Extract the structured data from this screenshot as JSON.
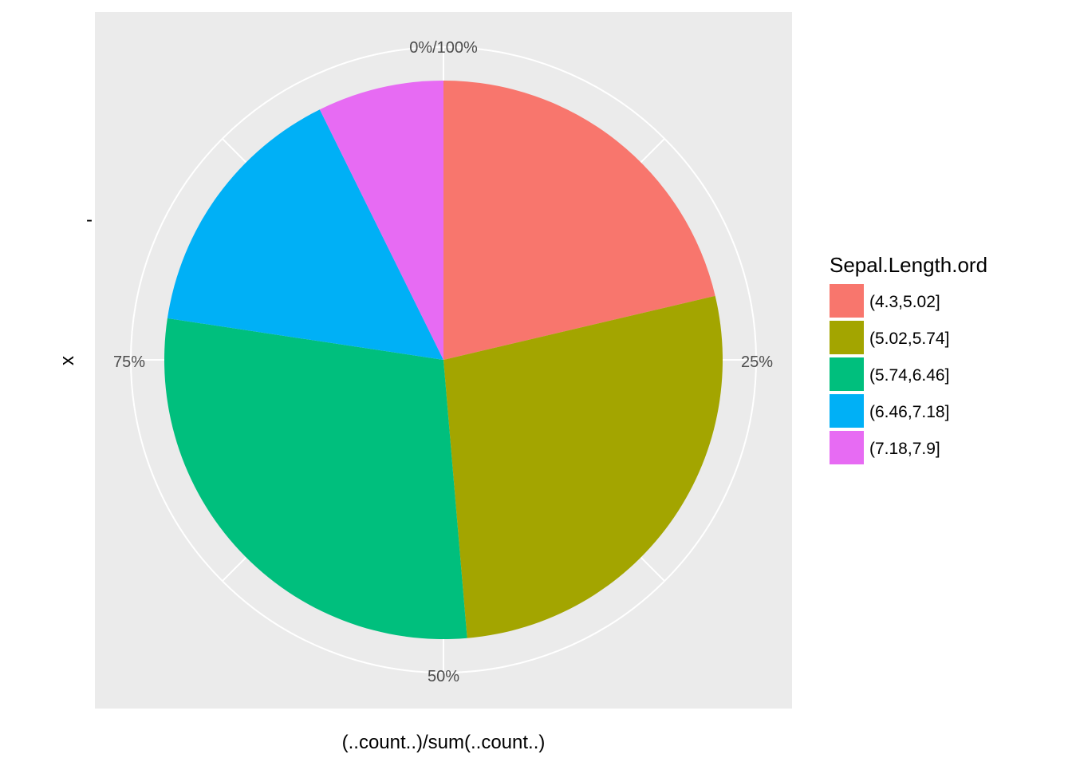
{
  "chart_data": {
    "type": "pie",
    "xlabel": "(..count..)/sum(..count..)",
    "ylabel": "x",
    "y_tick_label": "-",
    "angle_ticks": [
      {
        "value": 0,
        "label": "0%/100%"
      },
      {
        "value": 0.25,
        "label": "25%"
      },
      {
        "value": 0.5,
        "label": "50%"
      },
      {
        "value": 0.75,
        "label": "75%"
      }
    ],
    "legend": {
      "title": "Sepal.Length.ord",
      "position": "right"
    },
    "slices": [
      {
        "label": "(4.3,5.02]",
        "value": 0.213,
        "color": "#F8766D"
      },
      {
        "label": "(5.02,5.74]",
        "value": 0.273,
        "color": "#A3A500"
      },
      {
        "label": "(5.74,6.46]",
        "value": 0.287,
        "color": "#00BF7D"
      },
      {
        "label": "(6.46,7.18]",
        "value": 0.153,
        "color": "#00B0F6"
      },
      {
        "label": "(7.18,7.9]",
        "value": 0.073,
        "color": "#E76BF3"
      }
    ],
    "panel_background": "#EBEBEB",
    "grid_color": "#FFFFFF"
  }
}
